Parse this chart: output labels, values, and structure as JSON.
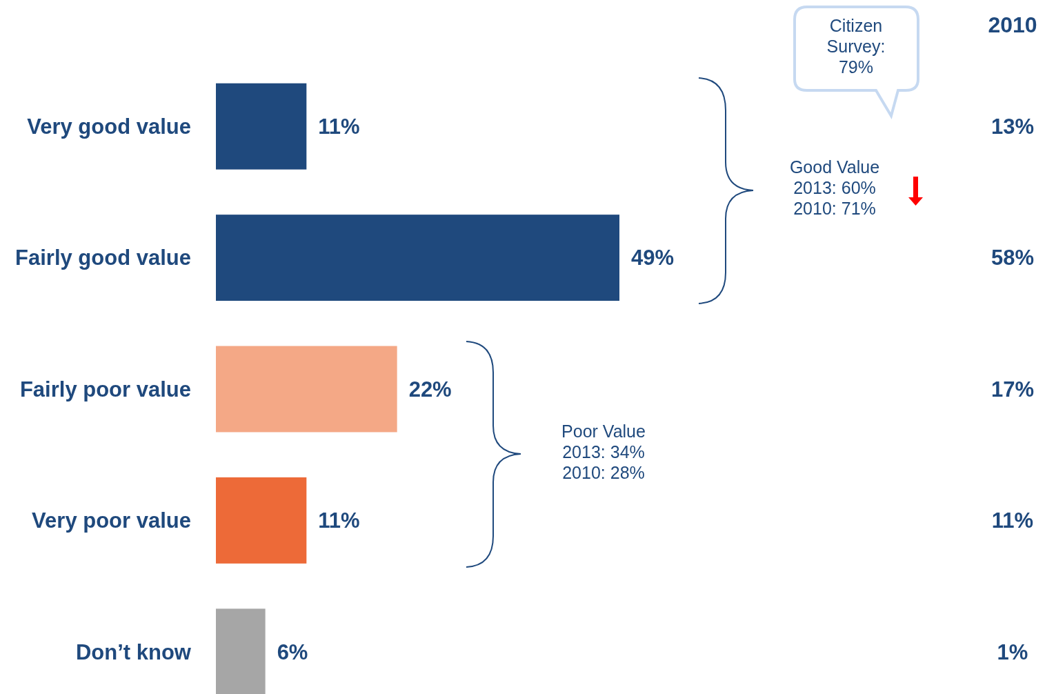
{
  "chart_data": {
    "type": "bar",
    "orientation": "horizontal",
    "categories": [
      "Very good value",
      "Fairly good value",
      "Fairly poor value",
      "Very poor value",
      "Don’t know"
    ],
    "values": [
      11,
      49,
      22,
      11,
      6
    ],
    "colors": [
      "#1f497d",
      "#1f497d",
      "#f4a886",
      "#ed6a38",
      "#a6a6a6"
    ],
    "value_labels": [
      "11%",
      "49%",
      "22%",
      "11%",
      "6%"
    ],
    "annotations": [
      "Citizen\nSurvey:\n79%",
      "Good Value\n2013:  60%\n2010: 71%",
      "Poor Value\n2013:  34%\n2010: 28%",
      "2010",
      "13%",
      "58%",
      "17%",
      "11%",
      "1%"
    ]
  }
}
